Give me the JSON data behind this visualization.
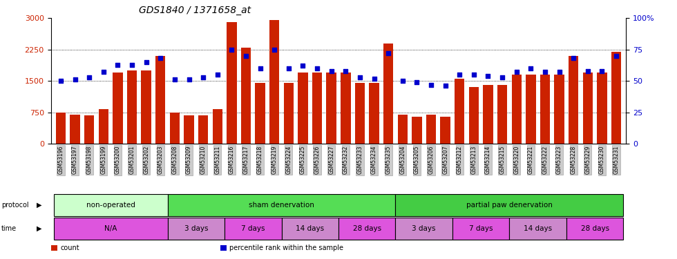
{
  "title": "GDS1840 / 1371658_at",
  "samples": [
    "GSM53196",
    "GSM53197",
    "GSM53198",
    "GSM53199",
    "GSM53200",
    "GSM53201",
    "GSM53202",
    "GSM53203",
    "GSM53208",
    "GSM53209",
    "GSM53210",
    "GSM53211",
    "GSM53216",
    "GSM53217",
    "GSM53218",
    "GSM53219",
    "GSM53224",
    "GSM53225",
    "GSM53226",
    "GSM53227",
    "GSM53232",
    "GSM53233",
    "GSM53234",
    "GSM53235",
    "GSM53204",
    "GSM53205",
    "GSM53206",
    "GSM53207",
    "GSM53212",
    "GSM53213",
    "GSM53214",
    "GSM53215",
    "GSM53220",
    "GSM53221",
    "GSM53222",
    "GSM53223",
    "GSM53228",
    "GSM53229",
    "GSM53230",
    "GSM53231"
  ],
  "counts": [
    750,
    700,
    680,
    820,
    1700,
    1750,
    1750,
    2100,
    750,
    680,
    680,
    820,
    2900,
    2300,
    1450,
    2950,
    1450,
    1700,
    1700,
    1700,
    1700,
    1450,
    1450,
    2400,
    700,
    650,
    700,
    650,
    1550,
    1350,
    1400,
    1400,
    1650,
    1650,
    1650,
    1650,
    2100,
    1700,
    1700,
    2200
  ],
  "percentiles": [
    50,
    51,
    53,
    57,
    63,
    63,
    65,
    68,
    51,
    51,
    53,
    55,
    75,
    70,
    60,
    75,
    60,
    62,
    60,
    58,
    58,
    53,
    52,
    72,
    50,
    49,
    47,
    46,
    55,
    55,
    54,
    53,
    57,
    60,
    57,
    57,
    68,
    58,
    58,
    70
  ],
  "ylim_left": [
    0,
    3000
  ],
  "ylim_right": [
    0,
    100
  ],
  "yticks_left": [
    0,
    750,
    1500,
    2250,
    3000
  ],
  "yticks_right": [
    0,
    25,
    50,
    75,
    100
  ],
  "bar_color": "#cc2200",
  "dot_color": "#0000cc",
  "protocol_groups": [
    {
      "label": "non-operated",
      "start": 0,
      "end": 8,
      "color": "#ccffcc"
    },
    {
      "label": "sham denervation",
      "start": 8,
      "end": 24,
      "color": "#55dd55"
    },
    {
      "label": "partial paw denervation",
      "start": 24,
      "end": 40,
      "color": "#44cc44"
    }
  ],
  "time_groups": [
    {
      "label": "N/A",
      "start": 0,
      "end": 8,
      "color": "#dd55dd"
    },
    {
      "label": "3 days",
      "start": 8,
      "end": 12,
      "color": "#cc88cc"
    },
    {
      "label": "7 days",
      "start": 12,
      "end": 16,
      "color": "#dd55dd"
    },
    {
      "label": "14 days",
      "start": 16,
      "end": 20,
      "color": "#cc88cc"
    },
    {
      "label": "28 days",
      "start": 20,
      "end": 24,
      "color": "#dd55dd"
    },
    {
      "label": "3 days",
      "start": 24,
      "end": 28,
      "color": "#cc88cc"
    },
    {
      "label": "7 days",
      "start": 28,
      "end": 32,
      "color": "#dd55dd"
    },
    {
      "label": "14 days",
      "start": 32,
      "end": 36,
      "color": "#cc88cc"
    },
    {
      "label": "28 days",
      "start": 36,
      "end": 40,
      "color": "#dd55dd"
    }
  ],
  "bg_color": "#ffffff",
  "tick_bg": "#cccccc",
  "legend_items": [
    {
      "color": "#cc2200",
      "label": "count"
    },
    {
      "color": "#0000cc",
      "label": "percentile rank within the sample"
    }
  ]
}
